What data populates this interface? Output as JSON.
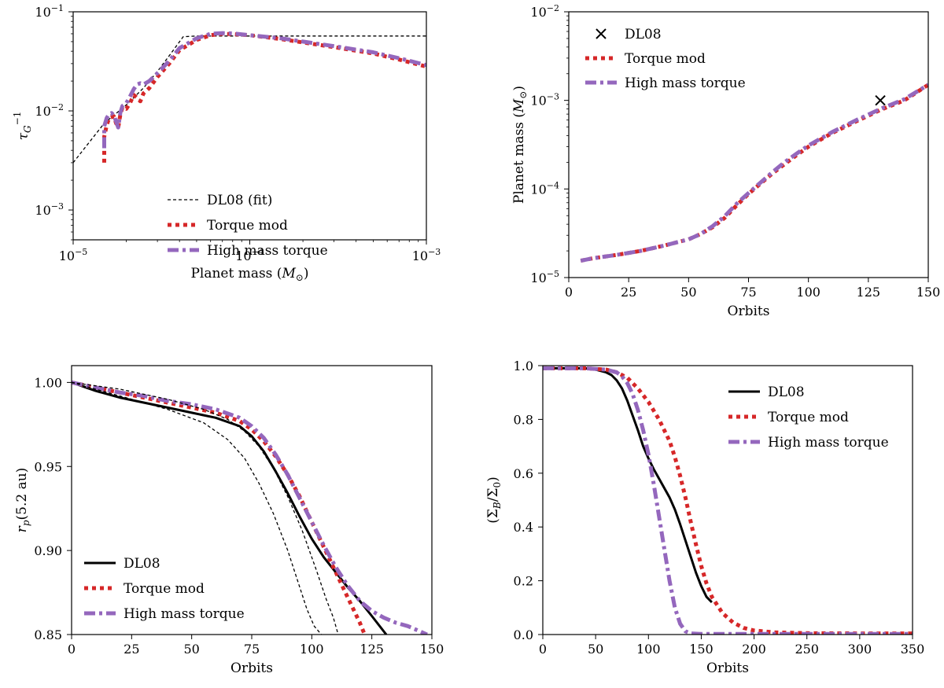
{
  "chart_data": [
    {
      "id": "panel-a",
      "type": "line",
      "xscale": "log",
      "yscale": "log",
      "xlim": [
        1e-05,
        0.001
      ],
      "ylim": [
        0.0005,
        0.1
      ],
      "xlabel_parts": [
        "Planet mass (",
        "M",
        "⊙",
        ")"
      ],
      "ylabel_parts": [
        "τ",
        "G",
        "−1"
      ],
      "x_ticks": [
        {
          "value": 1e-05,
          "base": "10",
          "exp": "−5"
        },
        {
          "value": 0.0001,
          "base": "10",
          "exp": "−4"
        },
        {
          "value": 0.001,
          "base": "10",
          "exp": "−3"
        }
      ],
      "y_ticks": [
        {
          "value": 0.001,
          "base": "10",
          "exp": "−3"
        },
        {
          "value": 0.01,
          "base": "10",
          "exp": "−2"
        },
        {
          "value": 0.1,
          "base": "10",
          "exp": "−1"
        }
      ],
      "grid": false,
      "legend_position": "lower-center",
      "series": [
        {
          "name": "DL08 (fit)",
          "color": "#000000",
          "style": "dashed-thin",
          "x": [
            1e-05,
            1.5e-05,
            2e-05,
            2.5e-05,
            3e-05,
            3.5e-05,
            4.2e-05,
            5e-05,
            0.0001,
            0.001
          ],
          "y": [
            0.003,
            0.0075,
            0.0115,
            0.017,
            0.025,
            0.036,
            0.056,
            0.057,
            0.057,
            0.057
          ]
        },
        {
          "name": "Torque mod",
          "color": "#d62728",
          "style": "dotted-thick",
          "x": [
            1.5e-05,
            1.5e-05,
            1.55e-05,
            1.6e-05,
            1.7e-05,
            1.75e-05,
            1.8e-05,
            1.85e-05,
            1.9e-05,
            2e-05,
            2.1e-05,
            2.2e-05,
            2.3e-05,
            2.4e-05,
            2.5e-05,
            2.7e-05,
            3e-05,
            3.5e-05,
            4e-05,
            5e-05,
            6e-05,
            7e-05,
            8e-05,
            0.0001,
            0.00015,
            0.0002,
            0.0003,
            0.0005,
            0.0007,
            0.001
          ],
          "y": [
            0.003,
            0.0055,
            0.0072,
            0.0085,
            0.0088,
            0.0075,
            0.0068,
            0.0092,
            0.0108,
            0.0105,
            0.012,
            0.0145,
            0.0135,
            0.0125,
            0.015,
            0.017,
            0.022,
            0.03,
            0.041,
            0.052,
            0.058,
            0.06,
            0.0595,
            0.058,
            0.053,
            0.049,
            0.044,
            0.038,
            0.033,
            0.028
          ]
        },
        {
          "name": "High mass torque",
          "color": "#9467bd",
          "style": "dashdot-thick",
          "x": [
            1.5e-05,
            1.5e-05,
            1.55e-05,
            1.6e-05,
            1.65e-05,
            1.7e-05,
            1.75e-05,
            1.8e-05,
            1.85e-05,
            1.9e-05,
            2e-05,
            2.1e-05,
            2.2e-05,
            2.3e-05,
            2.4e-05,
            2.5e-05,
            2.7e-05,
            3e-05,
            3.5e-05,
            4e-05,
            5e-05,
            6e-05,
            7e-05,
            8e-05,
            0.0001,
            0.00015,
            0.0002,
            0.0003,
            0.0005,
            0.0007,
            0.001
          ],
          "y": [
            0.0042,
            0.007,
            0.0085,
            0.0093,
            0.0095,
            0.009,
            0.0078,
            0.0068,
            0.0096,
            0.0112,
            0.012,
            0.014,
            0.0165,
            0.0185,
            0.019,
            0.0185,
            0.02,
            0.024,
            0.032,
            0.043,
            0.054,
            0.06,
            0.061,
            0.0605,
            0.058,
            0.054,
            0.05,
            0.045,
            0.039,
            0.034,
            0.029
          ]
        }
      ]
    },
    {
      "id": "panel-b",
      "type": "line",
      "xscale": "linear",
      "yscale": "log",
      "xlim": [
        0,
        150
      ],
      "ylim": [
        1e-05,
        0.01
      ],
      "xlabel": "Orbits",
      "ylabel_parts": [
        "Planet mass (",
        "M",
        "⊙",
        ")"
      ],
      "x_ticks": [
        {
          "value": 0,
          "label": "0"
        },
        {
          "value": 25,
          "label": "25"
        },
        {
          "value": 50,
          "label": "50"
        },
        {
          "value": 75,
          "label": "75"
        },
        {
          "value": 100,
          "label": "100"
        },
        {
          "value": 125,
          "label": "125"
        },
        {
          "value": 150,
          "label": "150"
        }
      ],
      "y_ticks": [
        {
          "value": 1e-05,
          "base": "10",
          "exp": "−5"
        },
        {
          "value": 0.0001,
          "base": "10",
          "exp": "−4"
        },
        {
          "value": 0.001,
          "base": "10",
          "exp": "−3"
        },
        {
          "value": 0.01,
          "base": "10",
          "exp": "−2"
        }
      ],
      "grid": false,
      "legend_position": "upper-left",
      "marker": {
        "name": "DL08",
        "symbol": "x",
        "color": "#000000",
        "x": 130,
        "y": 0.001
      },
      "series": [
        {
          "name": "Torque mod",
          "color": "#d62728",
          "style": "dotted-thick",
          "x": [
            5,
            10,
            20,
            30,
            40,
            50,
            55,
            60,
            65,
            70,
            75,
            80,
            85,
            90,
            95,
            100,
            110,
            120,
            130,
            140,
            150
          ],
          "y": [
            1.55e-05,
            1.65e-05,
            1.8e-05,
            2e-05,
            2.3e-05,
            2.7e-05,
            3.1e-05,
            3.7e-05,
            4.7e-05,
            6.5e-05,
            8.8e-05,
            0.000115,
            0.00015,
            0.00019,
            0.00024,
            0.0003,
            0.00043,
            0.00058,
            0.00078,
            0.001,
            0.0015
          ]
        },
        {
          "name": "High mass torque",
          "color": "#9467bd",
          "style": "dashdot-thick",
          "x": [
            5,
            10,
            20,
            30,
            40,
            50,
            55,
            60,
            65,
            70,
            75,
            80,
            85,
            90,
            95,
            100,
            110,
            120,
            130,
            140,
            150
          ],
          "y": [
            1.55e-05,
            1.65e-05,
            1.8e-05,
            2e-05,
            2.3e-05,
            2.7e-05,
            3.1e-05,
            3.8e-05,
            4.9e-05,
            6.8e-05,
            9e-05,
            0.000118,
            0.000155,
            0.0002,
            0.00025,
            0.00031,
            0.00044,
            0.0006,
            0.0008,
            0.00103,
            0.0015
          ]
        }
      ]
    },
    {
      "id": "panel-c",
      "type": "line",
      "xscale": "linear",
      "yscale": "linear",
      "xlim": [
        0,
        150
      ],
      "ylim": [
        0.85,
        1.01
      ],
      "xlabel": "Orbits",
      "ylabel_parts": [
        "r",
        "p",
        "(5.2 au)"
      ],
      "x_ticks": [
        {
          "value": 0,
          "label": "0"
        },
        {
          "value": 25,
          "label": "25"
        },
        {
          "value": 50,
          "label": "50"
        },
        {
          "value": 75,
          "label": "75"
        },
        {
          "value": 100,
          "label": "100"
        },
        {
          "value": 125,
          "label": "125"
        },
        {
          "value": 150,
          "label": "150"
        }
      ],
      "y_ticks": [
        {
          "value": 0.85,
          "label": "0.85"
        },
        {
          "value": 0.9,
          "label": "0.90"
        },
        {
          "value": 0.95,
          "label": "0.95"
        },
        {
          "value": 1.0,
          "label": "1.00"
        }
      ],
      "grid": false,
      "legend_position": "lower-left",
      "series": [
        {
          "name": "DL08",
          "color": "#000000",
          "style": "solid-thick",
          "x": [
            0,
            10,
            20,
            30,
            40,
            50,
            60,
            70,
            75,
            80,
            85,
            90,
            95,
            100,
            105,
            110,
            115,
            120,
            125,
            131
          ],
          "y": [
            1.0,
            0.995,
            0.991,
            0.988,
            0.985,
            0.982,
            0.979,
            0.974,
            0.968,
            0.959,
            0.947,
            0.934,
            0.92,
            0.907,
            0.896,
            0.887,
            0.878,
            0.87,
            0.861,
            0.85
          ]
        },
        {
          "name": "Torque mod",
          "color": "#d62728",
          "style": "dotted-thick",
          "x": [
            0,
            10,
            20,
            30,
            40,
            50,
            60,
            70,
            75,
            80,
            85,
            90,
            95,
            100,
            105,
            110,
            115,
            120,
            122
          ],
          "y": [
            1.0,
            0.997,
            0.994,
            0.991,
            0.988,
            0.985,
            0.982,
            0.977,
            0.972,
            0.965,
            0.956,
            0.945,
            0.932,
            0.917,
            0.902,
            0.887,
            0.872,
            0.857,
            0.85
          ]
        },
        {
          "name": "High mass torque",
          "color": "#9467bd",
          "style": "dashdot-thick",
          "x": [
            0,
            10,
            20,
            30,
            40,
            50,
            60,
            70,
            75,
            80,
            85,
            90,
            95,
            100,
            105,
            110,
            115,
            120,
            125,
            130,
            135,
            140,
            148
          ],
          "y": [
            1.0,
            0.997,
            0.994,
            0.992,
            0.989,
            0.987,
            0.984,
            0.979,
            0.974,
            0.967,
            0.957,
            0.945,
            0.931,
            0.917,
            0.903,
            0.89,
            0.879,
            0.87,
            0.864,
            0.86,
            0.857,
            0.855,
            0.85
          ]
        },
        {
          "name": "",
          "color": "#000000",
          "style": "dashed-thin",
          "x": [
            0,
            20,
            40,
            55,
            65,
            72,
            78,
            84,
            90,
            95,
            98,
            101,
            104
          ],
          "y": [
            1.0,
            0.992,
            0.984,
            0.976,
            0.966,
            0.955,
            0.94,
            0.922,
            0.9,
            0.878,
            0.865,
            0.855,
            0.85
          ]
        },
        {
          "name": "",
          "color": "#000000",
          "style": "dashed-thin",
          "x": [
            0,
            20,
            40,
            55,
            65,
            72,
            78,
            84,
            90,
            96,
            102,
            106,
            109,
            111
          ],
          "y": [
            1.0,
            0.996,
            0.99,
            0.984,
            0.978,
            0.971,
            0.962,
            0.949,
            0.932,
            0.912,
            0.888,
            0.871,
            0.86,
            0.85
          ]
        }
      ]
    },
    {
      "id": "panel-d",
      "type": "line",
      "xscale": "linear",
      "yscale": "linear",
      "xlim": [
        0,
        350
      ],
      "ylim": [
        0,
        1.0
      ],
      "xlabel": "Orbits",
      "ylabel_parts": [
        "(Σ",
        "B",
        "/Σ",
        "0",
        ")"
      ],
      "x_ticks": [
        {
          "value": 0,
          "label": "0"
        },
        {
          "value": 50,
          "label": "50"
        },
        {
          "value": 100,
          "label": "100"
        },
        {
          "value": 150,
          "label": "150"
        },
        {
          "value": 200,
          "label": "200"
        },
        {
          "value": 250,
          "label": "250"
        },
        {
          "value": 300,
          "label": "300"
        },
        {
          "value": 350,
          "label": "350"
        }
      ],
      "y_ticks": [
        {
          "value": 0.0,
          "label": "0.0"
        },
        {
          "value": 0.2,
          "label": "0.2"
        },
        {
          "value": 0.4,
          "label": "0.4"
        },
        {
          "value": 0.6,
          "label": "0.6"
        },
        {
          "value": 0.8,
          "label": "0.8"
        },
        {
          "value": 1.0,
          "label": "1.0"
        }
      ],
      "grid": false,
      "legend_position": "upper-right",
      "series": [
        {
          "name": "DL08",
          "color": "#000000",
          "style": "solid-thick",
          "x": [
            0,
            20,
            40,
            50,
            60,
            65,
            70,
            75,
            80,
            85,
            90,
            95,
            100,
            105,
            110,
            115,
            120,
            125,
            130,
            135,
            140,
            145,
            150,
            155,
            160
          ],
          "y": [
            0.99,
            0.99,
            0.99,
            0.985,
            0.975,
            0.965,
            0.945,
            0.915,
            0.87,
            0.815,
            0.76,
            0.7,
            0.655,
            0.615,
            0.58,
            0.545,
            0.51,
            0.465,
            0.41,
            0.35,
            0.29,
            0.23,
            0.18,
            0.14,
            0.12
          ]
        },
        {
          "name": "Torque mod",
          "color": "#d62728",
          "style": "dotted-thick",
          "x": [
            0,
            20,
            40,
            60,
            70,
            80,
            90,
            100,
            110,
            120,
            125,
            130,
            135,
            140,
            145,
            150,
            155,
            160,
            170,
            180,
            190,
            200,
            220,
            250,
            300,
            350
          ],
          "y": [
            0.99,
            0.99,
            0.99,
            0.985,
            0.975,
            0.955,
            0.915,
            0.865,
            0.8,
            0.72,
            0.66,
            0.59,
            0.51,
            0.42,
            0.335,
            0.255,
            0.19,
            0.14,
            0.08,
            0.045,
            0.025,
            0.015,
            0.008,
            0.005,
            0.004,
            0.004
          ]
        },
        {
          "name": "High mass torque",
          "color": "#9467bd",
          "style": "dashdot-thick",
          "x": [
            0,
            20,
            40,
            60,
            70,
            75,
            80,
            85,
            90,
            95,
            100,
            105,
            110,
            115,
            120,
            125,
            130,
            135,
            140,
            150,
            200,
            250,
            300,
            350
          ],
          "y": [
            0.99,
            0.99,
            0.99,
            0.985,
            0.975,
            0.96,
            0.935,
            0.895,
            0.835,
            0.76,
            0.67,
            0.56,
            0.44,
            0.32,
            0.2,
            0.1,
            0.04,
            0.012,
            0.004,
            0.002,
            0.002,
            0.002,
            0.002,
            0.002
          ]
        }
      ]
    }
  ]
}
